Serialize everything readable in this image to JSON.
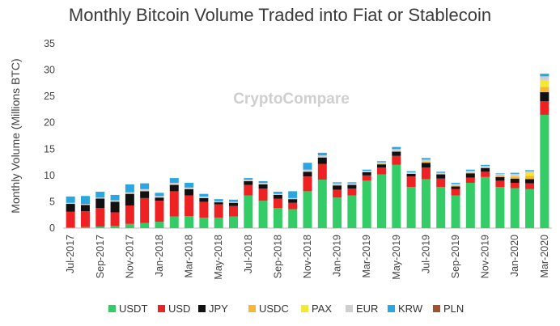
{
  "chart_data": {
    "type": "bar",
    "stacked": true,
    "title": "Monthly Bitcoin Volume Traded into Fiat or Stablecoin",
    "ylabel": "Monthly Volume (Millions BTC)",
    "xlabel": "",
    "ylim": [
      0,
      35
    ],
    "yticks": [
      0,
      5,
      10,
      15,
      20,
      25,
      30,
      35
    ],
    "grid": false,
    "legend_position": "bottom",
    "watermark": "CryptoCompare",
    "categories": [
      "Jul-2017",
      "Aug-2017",
      "Sep-2017",
      "Oct-2017",
      "Nov-2017",
      "Dec-2017",
      "Jan-2018",
      "Feb-2018",
      "Mar-2018",
      "Apr-2018",
      "May-2018",
      "Jun-2018",
      "Jul-2018",
      "Aug-2018",
      "Sep-2018",
      "Oct-2018",
      "Nov-2018",
      "Dec-2018",
      "Jan-2019",
      "Feb-2019",
      "Mar-2019",
      "Apr-2019",
      "May-2019",
      "Jun-2019",
      "Jul-2019",
      "Aug-2019",
      "Sep-2019",
      "Oct-2019",
      "Nov-2019",
      "Dec-2019",
      "Jan-2020",
      "Feb-2020",
      "Mar-2020"
    ],
    "xtick_labels": [
      "Jul-2017",
      "Sep-2017",
      "Nov-2017",
      "Jan-2018",
      "Mar-2018",
      "May-2018",
      "Jul-2018",
      "Sep-2018",
      "Nov-2018",
      "Jan-2019",
      "Mar-2019",
      "May-2019",
      "Jul-2019",
      "Sep-2019",
      "Nov-2019",
      "Jan-2020",
      "Mar-2020"
    ],
    "series": [
      {
        "name": "USDT",
        "color": "#33cc66",
        "values": [
          0.1,
          0.2,
          0.3,
          0.4,
          0.8,
          1.0,
          1.2,
          2.2,
          2.3,
          2.0,
          2.0,
          2.2,
          6.2,
          5.2,
          3.8,
          3.6,
          7.0,
          9.2,
          5.8,
          6.2,
          9.0,
          10.2,
          12.0,
          7.8,
          9.3,
          7.8,
          6.2,
          8.6,
          9.7,
          7.8,
          7.6,
          7.4,
          21.5
        ]
      },
      {
        "name": "USD",
        "color": "#ee2222",
        "values": [
          3.0,
          3.0,
          3.5,
          2.6,
          3.5,
          4.7,
          4.0,
          4.8,
          3.9,
          3.0,
          2.5,
          2.0,
          2.0,
          2.3,
          1.8,
          1.2,
          2.8,
          3.0,
          1.5,
          1.3,
          1.0,
          1.3,
          1.7,
          2.0,
          2.2,
          1.6,
          1.2,
          1.0,
          1.0,
          1.2,
          1.0,
          1.1,
          2.6
        ]
      },
      {
        "name": "JPY",
        "color": "#111111",
        "values": [
          1.5,
          1.2,
          1.8,
          2.0,
          2.2,
          1.3,
          0.6,
          1.2,
          1.2,
          0.7,
          0.4,
          0.6,
          0.7,
          0.8,
          0.7,
          0.7,
          0.9,
          1.2,
          0.8,
          0.7,
          0.6,
          0.6,
          0.8,
          0.5,
          0.9,
          0.8,
          0.5,
          0.8,
          0.7,
          0.7,
          0.8,
          0.8,
          1.7
        ]
      },
      {
        "name": "USDC",
        "color": "#f5b82e",
        "values": [
          0,
          0,
          0,
          0,
          0,
          0,
          0,
          0,
          0,
          0,
          0,
          0,
          0,
          0,
          0,
          0,
          0,
          0,
          0,
          0,
          0,
          0.1,
          0.1,
          0,
          0.2,
          0,
          0.2,
          0.1,
          0.1,
          0.3,
          0.4,
          0.6,
          1.0
        ]
      },
      {
        "name": "PAX",
        "color": "#f5e832",
        "values": [
          0,
          0,
          0,
          0,
          0,
          0,
          0,
          0,
          0,
          0,
          0,
          0,
          0,
          0,
          0,
          0,
          0,
          0,
          0,
          0,
          0,
          0,
          0,
          0,
          0,
          0,
          0,
          0,
          0,
          0,
          0.2,
          0.6,
          1.2
        ]
      },
      {
        "name": "EUR",
        "color": "#cfcfcf",
        "values": [
          0.2,
          0.2,
          0.2,
          0.3,
          0.3,
          0.4,
          0.3,
          0.4,
          0.3,
          0.3,
          0.2,
          0.2,
          0.3,
          0.3,
          0.2,
          0.2,
          0.4,
          0.4,
          0.4,
          0.3,
          0.3,
          0.3,
          0.4,
          0.3,
          0.4,
          0.3,
          0.3,
          0.4,
          0.3,
          0.3,
          0.3,
          0.3,
          0.8
        ]
      },
      {
        "name": "KRW",
        "color": "#2aa6e0",
        "values": [
          1.2,
          1.5,
          1.1,
          1.0,
          1.5,
          1.1,
          0.6,
          0.9,
          0.9,
          0.5,
          0.4,
          0.4,
          0.3,
          0.3,
          0.4,
          1.3,
          1.3,
          0.5,
          0.2,
          0.2,
          0.2,
          0.2,
          0.4,
          0.2,
          0.3,
          0.2,
          0.2,
          0.2,
          0.2,
          0.1,
          0.2,
          0.2,
          0.5
        ]
      },
      {
        "name": "PLN",
        "color": "#a0522d",
        "values": [
          0,
          0,
          0,
          0,
          0,
          0,
          0,
          0,
          0,
          0,
          0,
          0,
          0,
          0,
          0,
          0,
          0,
          0,
          0,
          0,
          0,
          0,
          0,
          0,
          0,
          0,
          0,
          0,
          0,
          0,
          0,
          0,
          0
        ]
      }
    ]
  }
}
